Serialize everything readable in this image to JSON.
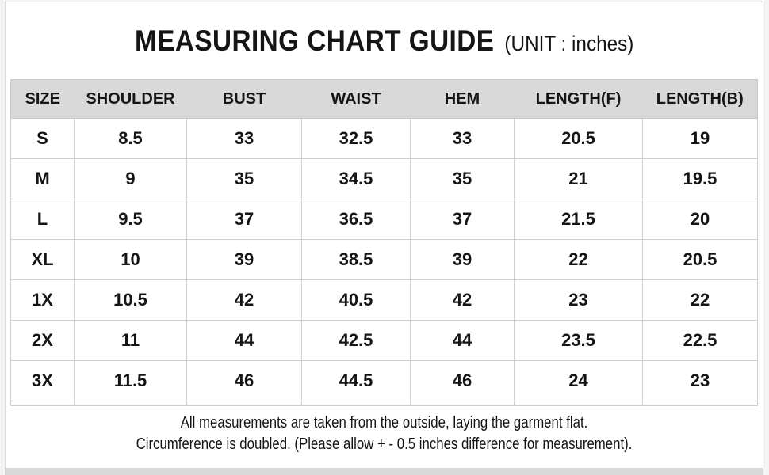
{
  "title": {
    "main": "MEASURING CHART GUIDE",
    "unit": "(UNIT : inches)"
  },
  "table": {
    "columns": [
      "SIZE",
      "SHOULDER",
      "BUST",
      "WAIST",
      "HEM",
      "LENGTH(F)",
      "LENGTH(B)"
    ],
    "rows": [
      [
        "S",
        "8.5",
        "33",
        "32.5",
        "33",
        "20.5",
        "19"
      ],
      [
        "M",
        "9",
        "35",
        "34.5",
        "35",
        "21",
        "19.5"
      ],
      [
        "L",
        "9.5",
        "37",
        "36.5",
        "37",
        "21.5",
        "20"
      ],
      [
        "XL",
        "10",
        "39",
        "38.5",
        "39",
        "22",
        "20.5"
      ],
      [
        "1X",
        "10.5",
        "42",
        "40.5",
        "42",
        "23",
        "22"
      ],
      [
        "2X",
        "11",
        "44",
        "42.5",
        "44",
        "23.5",
        "22.5"
      ],
      [
        "3X",
        "11.5",
        "46",
        "44.5",
        "46",
        "24",
        "23"
      ]
    ]
  },
  "footer": {
    "line1": "All measurements are taken from the outside, laying the garment flat.",
    "line2": "Circumference is doubled. (Please allow + - 0.5 inches difference for measurement)."
  },
  "colors": {
    "header_bg": "#d9d9d9",
    "border": "#c8c8c8",
    "bottom_strip": "#d9d9d9",
    "text": "#151515"
  }
}
